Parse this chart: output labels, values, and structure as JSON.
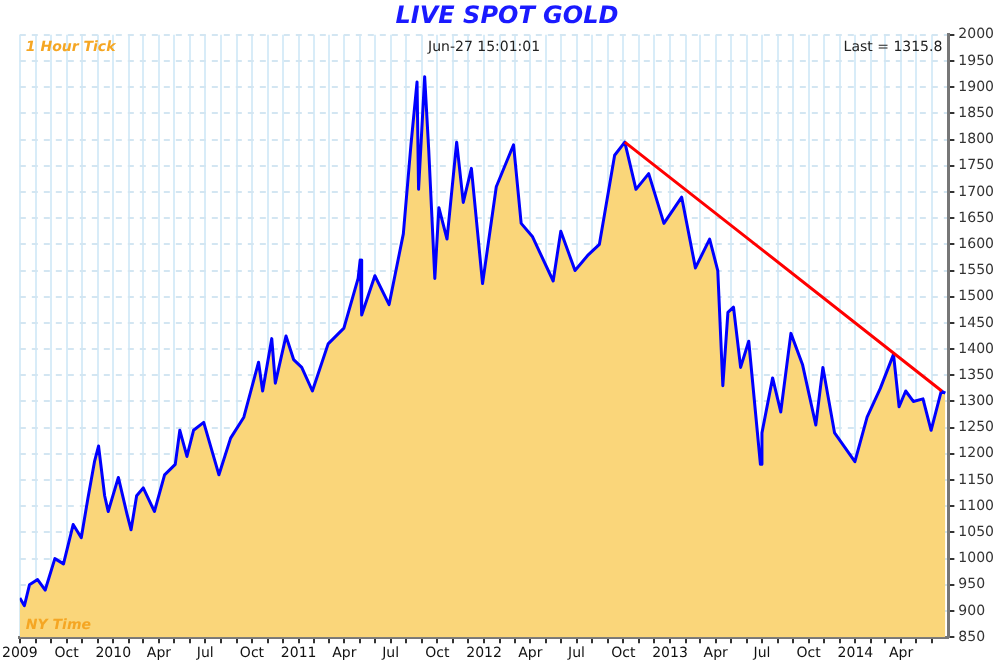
{
  "chart_data": {
    "type": "area",
    "title": "LIVE SPOT GOLD",
    "annotations": [
      "1 Hour Tick",
      "Jun-27 15:01:01",
      "Last = 1315.8",
      "NY Time"
    ],
    "x": [
      "2009-07-01",
      "2009-07-10",
      "2009-07-20",
      "2009-08-05",
      "2009-08-20",
      "2009-09-08",
      "2009-09-25",
      "2009-10-14",
      "2009-10-30",
      "2009-11-12",
      "2009-11-25",
      "2009-12-03",
      "2009-12-15",
      "2009-12-22",
      "2010-01-11",
      "2010-01-28",
      "2010-02-05",
      "2010-02-16",
      "2010-03-01",
      "2010-03-23",
      "2010-04-12",
      "2010-05-03",
      "2010-05-12",
      "2010-05-26",
      "2010-06-08",
      "2010-06-28",
      "2010-07-28",
      "2010-08-20",
      "2010-09-15",
      "2010-10-14",
      "2010-10-22",
      "2010-11-09",
      "2010-11-16",
      "2010-12-07",
      "2010-12-22",
      "2011-01-07",
      "2011-01-28",
      "2011-02-28",
      "2011-03-31",
      "2011-04-28",
      "2011-05-02",
      "2011-05-05",
      "2011-05-31",
      "2011-06-28",
      "2011-07-26",
      "2011-08-10",
      "2011-08-22",
      "2011-08-25",
      "2011-09-06",
      "2011-09-14",
      "2011-09-26",
      "2011-10-04",
      "2011-10-20",
      "2011-11-08",
      "2011-11-21",
      "2011-12-07",
      "2011-12-29",
      "2012-01-25",
      "2012-02-28",
      "2012-03-14",
      "2012-04-05",
      "2012-05-16",
      "2012-05-31",
      "2012-06-28",
      "2012-07-24",
      "2012-08-15",
      "2012-09-14",
      "2012-10-04",
      "2012-10-26",
      "2012-11-20",
      "2012-12-20",
      "2013-01-24",
      "2013-02-20",
      "2013-03-20",
      "2013-04-05",
      "2013-04-15",
      "2013-04-25",
      "2013-05-06",
      "2013-05-20",
      "2013-06-05",
      "2013-06-28",
      "2013-07-01",
      "2013-07-22",
      "2013-08-07",
      "2013-08-27",
      "2013-09-19",
      "2013-10-15",
      "2013-10-29",
      "2013-11-21",
      "2013-12-31",
      "2014-01-24",
      "2014-02-19",
      "2014-03-17",
      "2014-03-28",
      "2014-04-10",
      "2014-04-25",
      "2014-05-14",
      "2014-05-30",
      "2014-06-19",
      "2014-06-27"
    ],
    "series": [
      {
        "color": "#fad67a",
        "values": [
          925,
          910,
          950,
          960,
          940,
          1000,
          990,
          1065,
          1040,
          1115,
          1185,
          1215,
          1120,
          1090,
          1155,
          1085,
          1055,
          1120,
          1135,
          1090,
          1160,
          1180,
          1245,
          1195,
          1245,
          1260,
          1160,
          1230,
          1270,
          1375,
          1320,
          1420,
          1335,
          1425,
          1380,
          1365,
          1320,
          1410,
          1440,
          1535,
          1570,
          1465,
          1540,
          1485,
          1620,
          1790,
          1910,
          1705,
          1920,
          1780,
          1535,
          1670,
          1610,
          1795,
          1680,
          1745,
          1525,
          1710,
          1790,
          1640,
          1615,
          1530,
          1625,
          1550,
          1580,
          1600,
          1770,
          1795,
          1705,
          1735,
          1640,
          1690,
          1555,
          1610,
          1550,
          1330,
          1470,
          1480,
          1365,
          1415,
          1180,
          1240,
          1345,
          1280,
          1430,
          1370,
          1255,
          1365,
          1240,
          1185,
          1270,
          1325,
          1390,
          1290,
          1320,
          1300,
          1305,
          1245,
          1320,
          1316
        ]
      },
      {
        "type": "line",
        "color": "#0000ff",
        "values": [
          925,
          910,
          950,
          960,
          940,
          1000,
          990,
          1065,
          1040,
          1115,
          1185,
          1215,
          1120,
          1090,
          1155,
          1085,
          1055,
          1120,
          1135,
          1090,
          1160,
          1180,
          1245,
          1195,
          1245,
          1260,
          1160,
          1230,
          1270,
          1375,
          1320,
          1420,
          1335,
          1425,
          1380,
          1365,
          1320,
          1410,
          1440,
          1535,
          1570,
          1465,
          1540,
          1485,
          1620,
          1790,
          1910,
          1705,
          1920,
          1780,
          1535,
          1670,
          1610,
          1795,
          1680,
          1745,
          1525,
          1710,
          1790,
          1640,
          1615,
          1530,
          1625,
          1550,
          1580,
          1600,
          1770,
          1795,
          1705,
          1735,
          1640,
          1690,
          1555,
          1610,
          1550,
          1330,
          1470,
          1480,
          1365,
          1415,
          1180,
          1240,
          1345,
          1280,
          1430,
          1370,
          1255,
          1365,
          1240,
          1185,
          1270,
          1325,
          1390,
          1290,
          1320,
          1300,
          1305,
          1245,
          1320,
          1316
        ]
      },
      {
        "type": "line",
        "color": "#ff0000",
        "x": [
          "2012-10-04",
          "2013-07-01",
          "2014-06-20"
        ],
        "values": [
          1795,
          1590,
          1320
        ]
      }
    ],
    "xlim": [
      "2009-07-01",
      "2014-07-03"
    ],
    "xticks": [
      {
        "value": "2009-07-01",
        "label": "2009"
      },
      {
        "value": "2009-08-01",
        "label": null
      },
      {
        "value": "2009-09-01",
        "label": null
      },
      {
        "value": "2009-10-01",
        "label": "Oct"
      },
      {
        "value": "2009-11-01",
        "label": null
      },
      {
        "value": "2009-12-01",
        "label": null
      },
      {
        "value": "2010-01-01",
        "label": "2010"
      },
      {
        "value": "2010-02-01",
        "label": null
      },
      {
        "value": "2010-03-01",
        "label": null
      },
      {
        "value": "2010-04-01",
        "label": "Apr"
      },
      {
        "value": "2010-05-01",
        "label": null
      },
      {
        "value": "2010-06-01",
        "label": null
      },
      {
        "value": "2010-07-01",
        "label": "Jul"
      },
      {
        "value": "2010-08-01",
        "label": null
      },
      {
        "value": "2010-09-01",
        "label": null
      },
      {
        "value": "2010-10-01",
        "label": "Oct"
      },
      {
        "value": "2010-11-01",
        "label": null
      },
      {
        "value": "2010-12-01",
        "label": null
      },
      {
        "value": "2011-01-01",
        "label": "2011"
      },
      {
        "value": "2011-02-01",
        "label": null
      },
      {
        "value": "2011-03-01",
        "label": null
      },
      {
        "value": "2011-04-01",
        "label": "Apr"
      },
      {
        "value": "2011-05-01",
        "label": null
      },
      {
        "value": "2011-06-01",
        "label": null
      },
      {
        "value": "2011-07-01",
        "label": "Jul"
      },
      {
        "value": "2011-08-01",
        "label": null
      },
      {
        "value": "2011-09-01",
        "label": null
      },
      {
        "value": "2011-10-01",
        "label": "Oct"
      },
      {
        "value": "2011-11-01",
        "label": null
      },
      {
        "value": "2011-12-01",
        "label": null
      },
      {
        "value": "2012-01-01",
        "label": "2012"
      },
      {
        "value": "2012-02-01",
        "label": null
      },
      {
        "value": "2012-03-01",
        "label": null
      },
      {
        "value": "2012-04-01",
        "label": "Apr"
      },
      {
        "value": "2012-05-01",
        "label": null
      },
      {
        "value": "2012-06-01",
        "label": null
      },
      {
        "value": "2012-07-01",
        "label": "Jul"
      },
      {
        "value": "2012-08-01",
        "label": null
      },
      {
        "value": "2012-09-01",
        "label": null
      },
      {
        "value": "2012-10-01",
        "label": "Oct"
      },
      {
        "value": "2012-11-01",
        "label": null
      },
      {
        "value": "2012-12-01",
        "label": null
      },
      {
        "value": "2013-01-01",
        "label": "2013"
      },
      {
        "value": "2013-02-01",
        "label": null
      },
      {
        "value": "2013-03-01",
        "label": null
      },
      {
        "value": "2013-04-01",
        "label": "Apr"
      },
      {
        "value": "2013-05-01",
        "label": null
      },
      {
        "value": "2013-06-01",
        "label": null
      },
      {
        "value": "2013-07-01",
        "label": "Jul"
      },
      {
        "value": "2013-08-01",
        "label": null
      },
      {
        "value": "2013-09-01",
        "label": null
      },
      {
        "value": "2013-10-01",
        "label": "Oct"
      },
      {
        "value": "2013-11-01",
        "label": null
      },
      {
        "value": "2013-12-01",
        "label": null
      },
      {
        "value": "2014-01-01",
        "label": "2014"
      },
      {
        "value": "2014-02-01",
        "label": null
      },
      {
        "value": "2014-03-01",
        "label": null
      },
      {
        "value": "2014-04-01",
        "label": "Apr"
      },
      {
        "value": "2014-05-01",
        "label": null
      },
      {
        "value": "2014-06-01",
        "label": null
      }
    ],
    "ylim": [
      850,
      2000
    ],
    "yticks": [
      850,
      900,
      950,
      1000,
      1050,
      1100,
      1150,
      1200,
      1250,
      1300,
      1350,
      1400,
      1450,
      1500,
      1550,
      1600,
      1650,
      1700,
      1750,
      1800,
      1850,
      1900,
      1950,
      2000
    ],
    "grid": true
  }
}
